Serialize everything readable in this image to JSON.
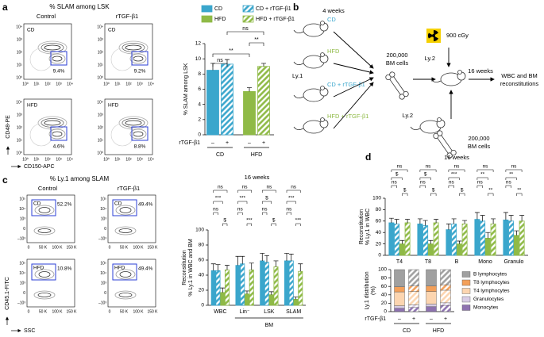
{
  "panel_labels": [
    "a",
    "b",
    "c",
    "d"
  ],
  "panel_a": {
    "title": "% SLAM among LSK",
    "columns": [
      "Control",
      "rTGF-β1"
    ],
    "y_axis_label": "CD48-PE",
    "x_axis_label": "CD150-APC",
    "ticks": [
      "10⁰",
      "10¹",
      "10²",
      "10³",
      "10⁴"
    ],
    "plots": [
      {
        "label": "CD",
        "percent": "9.4%"
      },
      {
        "label": "CD",
        "percent": "9.2%"
      },
      {
        "label": "HFD",
        "percent": "4.6%"
      },
      {
        "label": "HFD",
        "percent": "8.8%"
      }
    ]
  },
  "panel_b": {
    "duration_1": "4 weeks",
    "diets": [
      "CD",
      "HFD",
      "CD + rTGF-β1",
      "HFD + rTGF-β1"
    ],
    "donor": "Ly.1",
    "cells": [
      "200,000",
      "BM cells"
    ],
    "irradiation": "900 cGy",
    "recipient": "Ly.2",
    "duration_2": "16 weeks",
    "readout": [
      "WBC and BM",
      "reconstitutions"
    ],
    "competitor": "Ly.2",
    "competitor_cells": [
      "200,000",
      "BM cells"
    ]
  },
  "panel_c": {
    "title": "% Ly.1 among SLAM",
    "columns": [
      "Control",
      "rTGF-β1"
    ],
    "y_axis_label": "CD45.1-FITC",
    "x_axis_label": "SSC",
    "x_ticks": [
      "0",
      "50 K",
      "100 K",
      "150 K"
    ],
    "y_ticks": [
      "10⁵",
      "10⁴",
      "10³",
      "0",
      "–10³"
    ],
    "plots": [
      {
        "label": "CD",
        "percent": "52.2%"
      },
      {
        "label": "CD",
        "percent": "49.4%"
      },
      {
        "label": "HFD",
        "percent": "10.8%"
      },
      {
        "label": "HFD",
        "percent": "49.4%"
      }
    ]
  },
  "chart_data": [
    {
      "type": "bar",
      "ylabel": "% SLAM among LSK",
      "ylim": [
        0,
        12
      ],
      "yticks": [
        0,
        2,
        4,
        6,
        8,
        10,
        12
      ],
      "x_label": "rTGF-β1",
      "treatment_signs": [
        "–",
        "+",
        "–",
        "+"
      ],
      "groups": [
        "CD",
        "HFD"
      ],
      "series": [
        {
          "name": "CD",
          "color": "#3aa6cc",
          "hatch": false,
          "values": [
            8.5
          ],
          "errors": [
            0.9
          ]
        },
        {
          "name": "CD + rTGF-β1",
          "color": "#3aa6cc",
          "hatch": true,
          "values": [
            9.3
          ],
          "errors": [
            0.6
          ]
        },
        {
          "name": "HFD",
          "color": "#8fba46",
          "hatch": false,
          "values": [
            5.7
          ],
          "errors": [
            0.5
          ]
        },
        {
          "name": "HFD + rTGF-β1",
          "color": "#8fba46",
          "hatch": true,
          "values": [
            9.0
          ],
          "errors": [
            0.4
          ]
        }
      ],
      "significance": [
        "ns",
        "**",
        "**",
        "ns"
      ]
    },
    {
      "type": "bar",
      "title": "16 weeks",
      "ylabel": [
        "Reconstitution",
        "% Ly.1 in WBC and BM"
      ],
      "ylim": [
        0,
        100
      ],
      "yticks": [
        0,
        20,
        40,
        60,
        80,
        100
      ],
      "categories": [
        "WBC",
        "Lin⁻",
        "LSK",
        "SLAM"
      ],
      "group_label": "BM",
      "series": [
        {
          "color": "#3aa6cc",
          "hatch": false,
          "values": [
            46,
            53,
            59,
            59
          ],
          "errors": [
            9,
            12,
            10,
            10
          ]
        },
        {
          "color": "#3aa6cc",
          "hatch": true,
          "values": [
            46,
            55,
            57,
            59
          ],
          "errors": [
            8,
            10,
            9,
            9
          ]
        },
        {
          "color": "#8fba46",
          "hatch": false,
          "values": [
            17,
            15,
            14,
            8
          ],
          "errors": [
            6,
            4,
            4,
            3
          ]
        },
        {
          "color": "#8fba46",
          "hatch": true,
          "values": [
            47,
            47,
            51,
            45
          ],
          "errors": [
            6,
            9,
            8,
            10
          ]
        }
      ],
      "significance": [
        [
          "ns",
          "***",
          "ns",
          "$"
        ],
        [
          "ns",
          "***",
          "ns",
          "***"
        ],
        [
          "ns",
          "$",
          "ns",
          "$"
        ],
        [
          "ns",
          "***",
          "ns",
          "***"
        ]
      ]
    },
    {
      "type": "bar",
      "title": "16 weeks",
      "ylabel": [
        "Reconstitution",
        "% Ly.1 in WBC"
      ],
      "ylim": [
        0,
        100
      ],
      "yticks": [
        0,
        20,
        40,
        60,
        80,
        100
      ],
      "categories": [
        "T4",
        "T8",
        "B",
        "Mono",
        "Granulo"
      ],
      "series": [
        {
          "color": "#3aa6cc",
          "hatch": false,
          "values": [
            57,
            55,
            45,
            63,
            62
          ],
          "errors": [
            8,
            9,
            10,
            12,
            13
          ]
        },
        {
          "color": "#3aa6cc",
          "hatch": true,
          "values": [
            55,
            52,
            55,
            60,
            60
          ],
          "errors": [
            8,
            9,
            9,
            10,
            10
          ]
        },
        {
          "color": "#8fba46",
          "hatch": false,
          "values": [
            20,
            20,
            20,
            30,
            35
          ],
          "errors": [
            6,
            6,
            5,
            10,
            8
          ]
        },
        {
          "color": "#8fba46",
          "hatch": true,
          "values": [
            57,
            57,
            55,
            55,
            60
          ],
          "errors": [
            6,
            6,
            6,
            9,
            10
          ]
        }
      ],
      "significance": [
        [
          "ns",
          "$",
          "ns",
          "$"
        ],
        [
          "ns",
          "$",
          "ns",
          "$"
        ],
        [
          "ns",
          "***",
          "ns",
          "$"
        ],
        [
          "ns",
          "**",
          "ns",
          "**"
        ],
        [
          "ns",
          "**",
          "ns",
          "**"
        ]
      ]
    },
    {
      "type": "stacked_bar",
      "ylabel": [
        "Ly.1 distribution",
        "(%)"
      ],
      "ylim": [
        0,
        100
      ],
      "yticks": [
        0,
        20,
        40,
        60,
        80,
        100
      ],
      "x_label": "rTGF-β1",
      "treatment_signs": [
        "–",
        "+",
        "–",
        "+"
      ],
      "groups": [
        "CD",
        "HFD"
      ],
      "hatched": [
        false,
        true,
        false,
        true
      ],
      "series": [
        {
          "name": "Monocytes",
          "color": "#8e72b0",
          "values": [
            8,
            10,
            12,
            15
          ]
        },
        {
          "name": "Granulocytes",
          "color": "#d9cde6",
          "values": [
            6,
            6,
            6,
            6
          ]
        },
        {
          "name": "T4 lymphocytes",
          "color": "#fcd5b0",
          "values": [
            33,
            32,
            30,
            30
          ]
        },
        {
          "name": "T8 lymphocytes",
          "color": "#f3a05a",
          "values": [
            12,
            13,
            13,
            13
          ]
        },
        {
          "name": "B lymphocytes",
          "color": "#a0a0a0",
          "values": [
            41,
            39,
            39,
            36
          ]
        }
      ]
    }
  ]
}
